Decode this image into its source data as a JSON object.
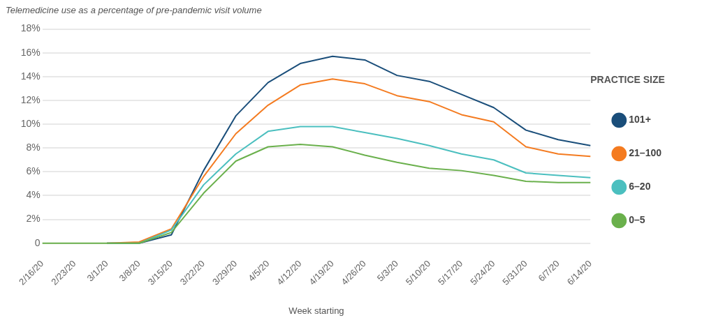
{
  "chart_data": {
    "type": "line",
    "title": "Telemedicine use as a percentage of pre-pandemic visit volume",
    "xlabel": "Week starting",
    "legend_title": "PRACTICE SIZE",
    "legend": "right",
    "grid": "y",
    "marker": "none",
    "line_style": "solid",
    "categories": [
      "2/16/20",
      "2/23/20",
      "3/1/20",
      "3/8/20",
      "3/15/20",
      "3/22/20",
      "3/29/20",
      "4/5/20",
      "4/12/20",
      "4/19/20",
      "4/26/20",
      "5/3/20",
      "5/10/20",
      "5/17/20",
      "5/24/20",
      "5/31/20",
      "6/7/20",
      "6/14/20"
    ],
    "ylim": [
      0,
      18
    ],
    "yticks": [
      0,
      {
        "value": 2,
        "label": "2%"
      },
      {
        "value": 4,
        "label": "4%"
      },
      {
        "value": 6,
        "label": "6%"
      },
      {
        "value": 8,
        "label": "8%"
      },
      {
        "value": 10,
        "label": "10%"
      },
      {
        "value": 12,
        "label": "12%"
      },
      {
        "value": 14,
        "label": "14%"
      },
      {
        "value": 16,
        "label": "16%"
      },
      {
        "value": 18,
        "label": "18%"
      }
    ],
    "series": [
      {
        "name": "101+",
        "color": "#1a4e7a",
        "values": [
          null,
          null,
          0,
          0,
          0.7,
          6.1,
          10.7,
          13.5,
          15.1,
          15.7,
          15.4,
          14.1,
          13.6,
          12.5,
          11.4,
          9.5,
          8.7,
          8.2
        ]
      },
      {
        "name": "21–100",
        "color": "#f47b20",
        "values": [
          null,
          null,
          0,
          0.1,
          1.2,
          5.6,
          9.2,
          11.6,
          13.3,
          13.8,
          13.4,
          12.4,
          11.9,
          10.8,
          10.2,
          8.1,
          7.5,
          7.3
        ]
      },
      {
        "name": "6–20",
        "color": "#4bbfbf",
        "values": [
          null,
          null,
          0,
          0,
          1.1,
          4.9,
          7.5,
          9.4,
          9.8,
          9.8,
          9.3,
          8.8,
          8.2,
          7.5,
          7.0,
          5.9,
          5.7,
          5.5
        ]
      },
      {
        "name": "0–5",
        "color": "#6ab04c",
        "values": [
          0,
          0,
          0,
          0,
          0.9,
          4.2,
          6.9,
          8.1,
          8.3,
          8.1,
          7.4,
          6.8,
          6.3,
          6.1,
          5.7,
          5.2,
          5.1,
          5.1
        ]
      }
    ]
  }
}
